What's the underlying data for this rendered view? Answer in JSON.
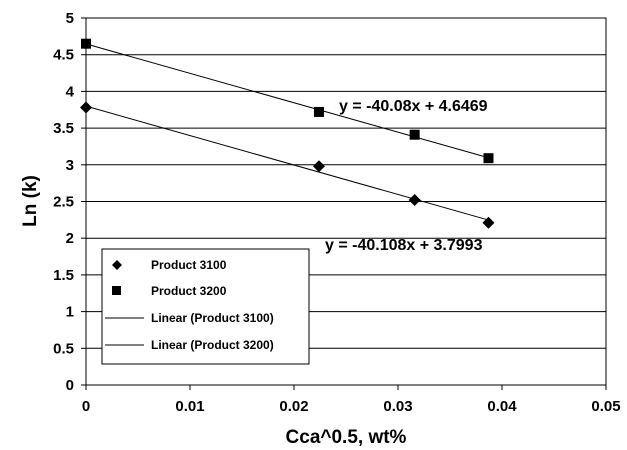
{
  "chart_data": {
    "type": "scatter",
    "xlabel": "Cca^0.5, wt%",
    "ylabel": "Ln (k)",
    "xlim": [
      0,
      0.05
    ],
    "ylim": [
      0,
      5
    ],
    "x_ticks": [
      "0",
      "0.01",
      "0.02",
      "0.03",
      "0.04",
      "0.05"
    ],
    "y_ticks": [
      "0",
      "0.5",
      "1",
      "1.5",
      "2",
      "2.5",
      "3",
      "3.5",
      "4",
      "4.5",
      "5"
    ],
    "grid": "horizontal",
    "legend_position": "lower-left",
    "series": [
      {
        "name": "Product 3100",
        "marker": "diamond",
        "points": [
          {
            "x": 0,
            "y": 3.78
          },
          {
            "x": 0.0224,
            "y": 2.98
          },
          {
            "x": 0.0316,
            "y": 2.52
          },
          {
            "x": 0.0387,
            "y": 2.21
          }
        ]
      },
      {
        "name": "Product 3200",
        "marker": "square",
        "points": [
          {
            "x": 0,
            "y": 4.65
          },
          {
            "x": 0.0224,
            "y": 3.72
          },
          {
            "x": 0.0316,
            "y": 3.41
          },
          {
            "x": 0.0387,
            "y": 3.09
          }
        ]
      }
    ],
    "trendlines": [
      {
        "name": "Linear (Product 3100)",
        "slope": -40.108,
        "intercept": 3.7993,
        "x_end": 0.0387,
        "equation": "y = -40.108x + 3.7993"
      },
      {
        "name": "Linear (Product 3200)",
        "slope": -40.08,
        "intercept": 4.6469,
        "x_end": 0.0387,
        "equation": "y = -40.08x + 4.6469"
      }
    ]
  }
}
